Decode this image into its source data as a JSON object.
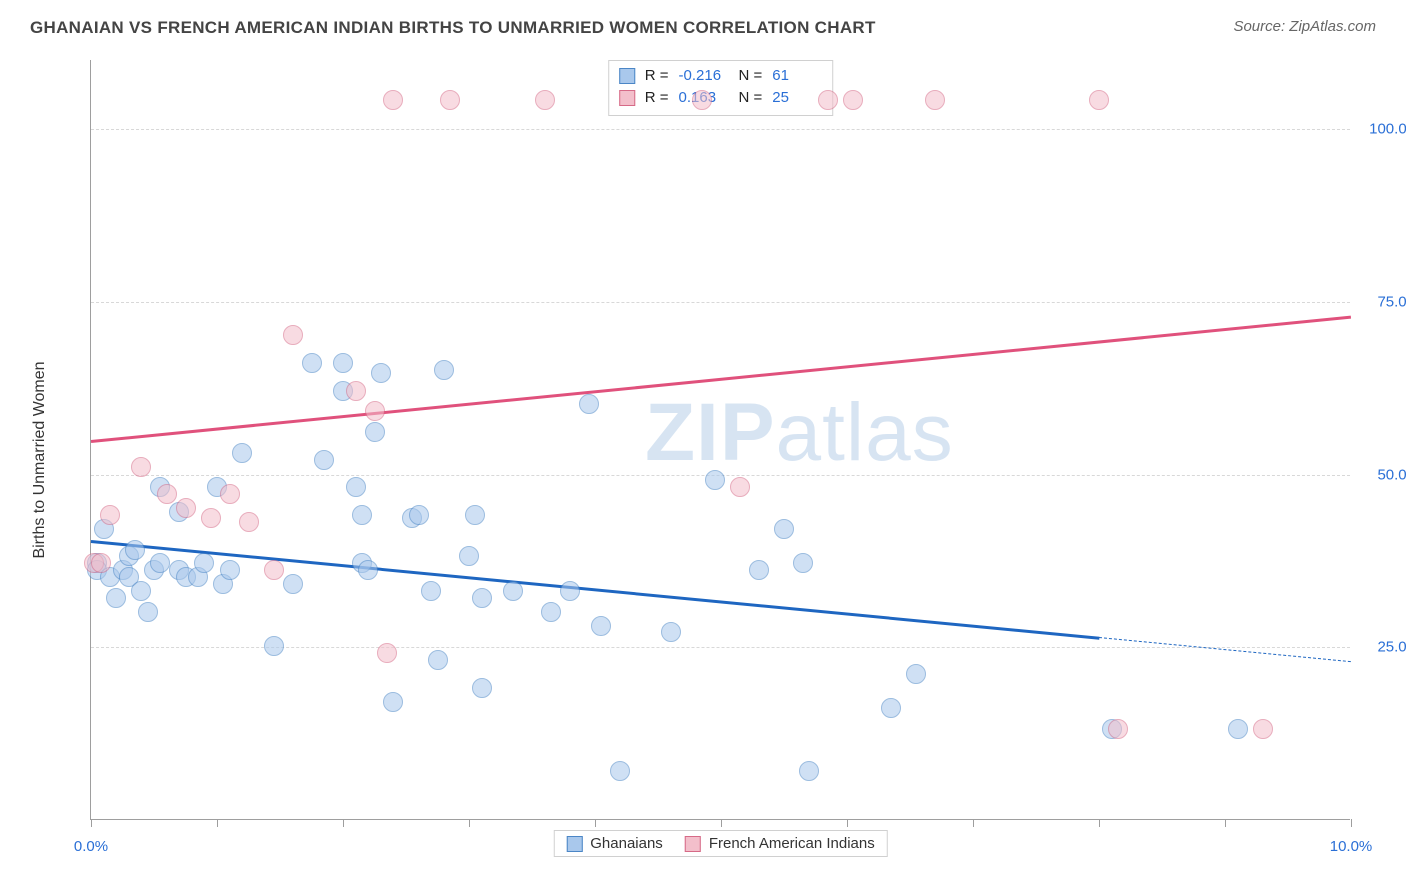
{
  "header": {
    "title": "GHANAIAN VS FRENCH AMERICAN INDIAN BIRTHS TO UNMARRIED WOMEN CORRELATION CHART",
    "source_label": "Source: ZipAtlas.com"
  },
  "chart": {
    "type": "scatter",
    "watermark": "ZIPatlas",
    "watermark_color": "#b8cfe8",
    "background_color": "#ffffff",
    "grid_color": "#d8d8d8",
    "axis_color": "#9e9e9e",
    "y_axis_title": "Births to Unmarried Women",
    "y_axis_title_color": "#333333",
    "x_range": [
      0,
      10
    ],
    "y_range": [
      0,
      110
    ],
    "x_ticks": [
      0,
      1,
      2,
      3,
      4,
      5,
      6,
      7,
      8,
      9,
      10
    ],
    "x_tick_labels": {
      "0": "0.0%",
      "10": "10.0%"
    },
    "x_label_color": "#2a6fd6",
    "y_grid": [
      25,
      50,
      75,
      100
    ],
    "y_tick_labels": {
      "25": "25.0%",
      "50": "50.0%",
      "75": "75.0%",
      "100": "100.0%"
    },
    "y_label_color": "#2a6fd6",
    "point_radius": 10,
    "point_opacity": 0.55,
    "series": [
      {
        "key": "ghanaians",
        "name": "Ghanaians",
        "fill": "#a9c8ec",
        "stroke": "#4b86c6",
        "stats": {
          "R": "-0.216",
          "N": "61"
        },
        "trend": {
          "y_at_x0": 40.5,
          "y_at_x10": 23.0,
          "color": "#1e66c1",
          "width": 2.5,
          "solid_until_x": 8.0
        },
        "points": [
          [
            0.05,
            37
          ],
          [
            0.05,
            36
          ],
          [
            0.1,
            42
          ],
          [
            0.15,
            35
          ],
          [
            0.2,
            32
          ],
          [
            0.25,
            36
          ],
          [
            0.3,
            38
          ],
          [
            0.3,
            35
          ],
          [
            0.35,
            39
          ],
          [
            0.4,
            33
          ],
          [
            0.45,
            30
          ],
          [
            0.5,
            36
          ],
          [
            0.55,
            48
          ],
          [
            0.55,
            37
          ],
          [
            0.7,
            44.5
          ],
          [
            0.7,
            36
          ],
          [
            0.75,
            35
          ],
          [
            0.85,
            35
          ],
          [
            0.9,
            37
          ],
          [
            1.0,
            48
          ],
          [
            1.05,
            34
          ],
          [
            1.1,
            36
          ],
          [
            1.2,
            53
          ],
          [
            1.45,
            25
          ],
          [
            1.6,
            34
          ],
          [
            1.75,
            66
          ],
          [
            1.85,
            52
          ],
          [
            2.0,
            66
          ],
          [
            2.0,
            62
          ],
          [
            2.1,
            48
          ],
          [
            2.15,
            44
          ],
          [
            2.15,
            37
          ],
          [
            2.2,
            36
          ],
          [
            2.25,
            56
          ],
          [
            2.3,
            64.5
          ],
          [
            2.4,
            17
          ],
          [
            2.55,
            43.5
          ],
          [
            2.6,
            44
          ],
          [
            2.7,
            33
          ],
          [
            2.75,
            23
          ],
          [
            2.8,
            65
          ],
          [
            3.0,
            38
          ],
          [
            3.05,
            44
          ],
          [
            3.1,
            32
          ],
          [
            3.1,
            19
          ],
          [
            3.35,
            33
          ],
          [
            3.65,
            30
          ],
          [
            3.8,
            33
          ],
          [
            3.95,
            60
          ],
          [
            4.05,
            28
          ],
          [
            4.2,
            7
          ],
          [
            4.6,
            27
          ],
          [
            4.95,
            49
          ],
          [
            5.3,
            36
          ],
          [
            5.5,
            42
          ],
          [
            5.65,
            37
          ],
          [
            5.7,
            7
          ],
          [
            6.35,
            16
          ],
          [
            6.55,
            21
          ],
          [
            8.1,
            13
          ],
          [
            9.1,
            13
          ]
        ]
      },
      {
        "key": "french_american_indians",
        "name": "French American Indians",
        "fill": "#f3bfcb",
        "stroke": "#d66a87",
        "stats": {
          "R": "0.163",
          "N": "25"
        },
        "trend": {
          "y_at_x0": 55.0,
          "y_at_x10": 73.0,
          "color": "#e0517c",
          "width": 2.5,
          "solid_until_x": 10.0
        },
        "points": [
          [
            0.02,
            37
          ],
          [
            0.08,
            37
          ],
          [
            0.15,
            44
          ],
          [
            0.4,
            51
          ],
          [
            0.6,
            47
          ],
          [
            0.75,
            45
          ],
          [
            0.95,
            43.5
          ],
          [
            1.1,
            47
          ],
          [
            1.25,
            43
          ],
          [
            1.45,
            36
          ],
          [
            1.6,
            70
          ],
          [
            2.1,
            62
          ],
          [
            2.25,
            59
          ],
          [
            2.35,
            24
          ],
          [
            2.4,
            104
          ],
          [
            2.85,
            104
          ],
          [
            3.6,
            104
          ],
          [
            4.85,
            104
          ],
          [
            5.15,
            48
          ],
          [
            5.85,
            104
          ],
          [
            6.05,
            104
          ],
          [
            6.7,
            104
          ],
          [
            8.0,
            104
          ],
          [
            8.15,
            13
          ],
          [
            9.3,
            13
          ]
        ]
      }
    ],
    "stat_legend": {
      "R_label": "R =",
      "N_label": "N =",
      "value_color": "#2a6fd6",
      "label_color": "#222222",
      "border_color": "#d0d0d0"
    },
    "bottom_legend": {
      "border_color": "#d0d0d0",
      "text_color": "#333333"
    }
  }
}
